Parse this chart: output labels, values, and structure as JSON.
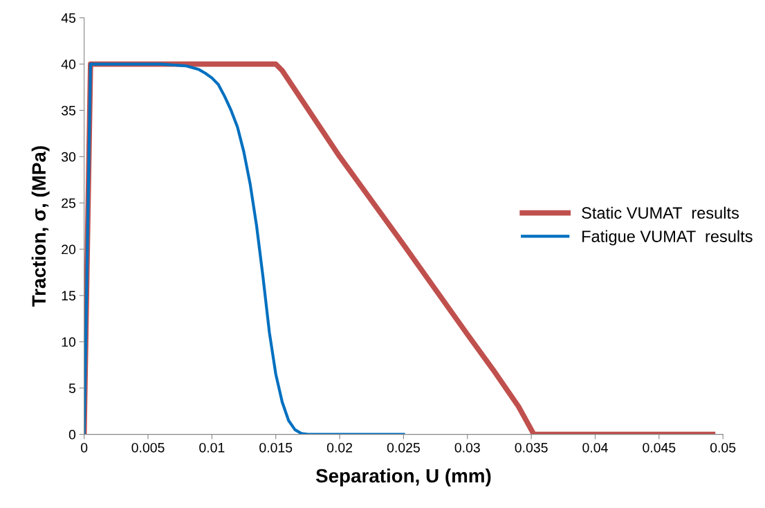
{
  "chart_data": {
    "type": "line",
    "xlabel": "Separation, U (mm)",
    "ylabel": "Traction, σ, (MPa)",
    "xlim": [
      0,
      0.05
    ],
    "xticks": [
      0,
      0.005,
      0.01,
      0.015,
      0.02,
      0.025,
      0.03,
      0.035,
      0.04,
      0.045,
      0.05
    ],
    "ylim": [
      0,
      45
    ],
    "yticks": [
      0,
      5,
      10,
      15,
      20,
      25,
      30,
      35,
      40,
      45
    ],
    "grid": false,
    "legend": "right",
    "marker": "none",
    "line_style": "solid",
    "series": [
      {
        "name": "Static VUMAT  results",
        "color": "#c0504d",
        "x": [
          0,
          0.0005,
          0.015,
          0.0155,
          0.02,
          0.025,
          0.03,
          0.032,
          0.034,
          0.0352,
          0.0492
        ],
        "values": [
          0,
          40,
          40,
          39.3,
          30,
          20.5,
          10.8,
          7,
          3,
          0,
          0
        ]
      },
      {
        "name": "Fatigue VUMAT  results",
        "color": "#0070c0",
        "x": [
          0,
          0.0005,
          0.006,
          0.008,
          0.009,
          0.0095,
          0.01,
          0.0105,
          0.011,
          0.0115,
          0.012,
          0.0125,
          0.013,
          0.0135,
          0.014,
          0.0145,
          0.015,
          0.0155,
          0.016,
          0.0165,
          0.017,
          0.0175,
          0.025
        ],
        "values": [
          0,
          40,
          40,
          39.8,
          39.4,
          39,
          38.5,
          37.8,
          36.5,
          35,
          33.2,
          30.5,
          27,
          22.5,
          17,
          11,
          6.5,
          3.5,
          1.5,
          0.5,
          0.1,
          0,
          0
        ]
      }
    ]
  }
}
